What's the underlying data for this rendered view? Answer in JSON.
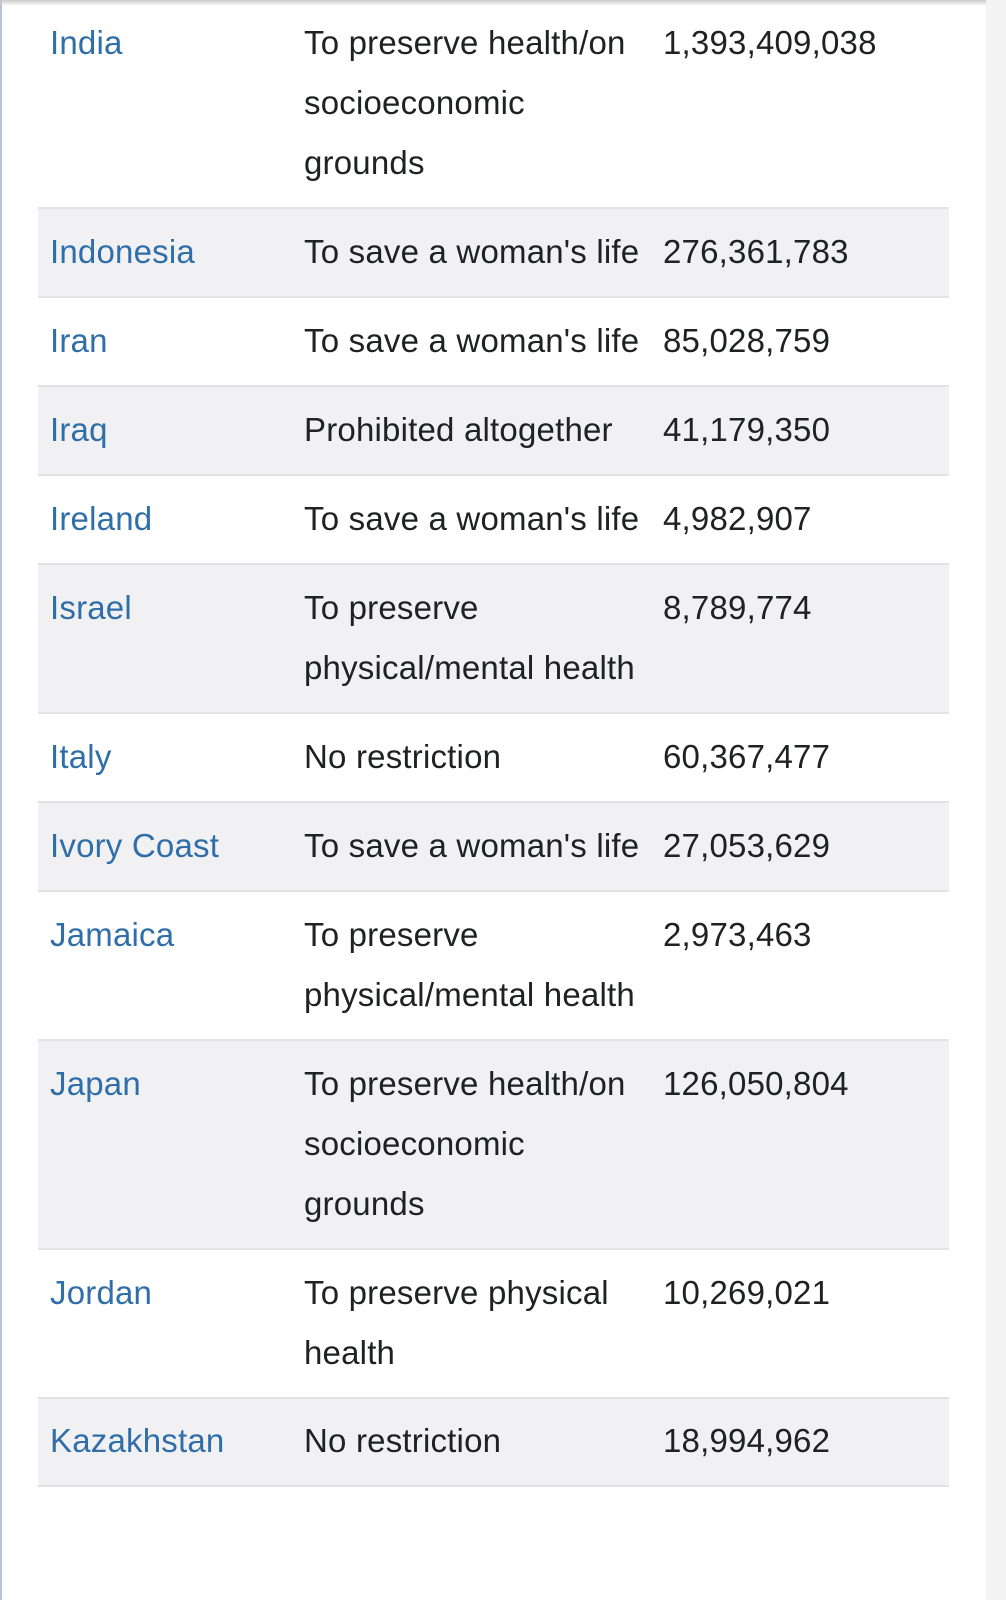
{
  "rows": [
    {
      "country": "India",
      "grounds": "To preserve health/on socioeconomic grounds",
      "population": "1,393,409,038"
    },
    {
      "country": "Indonesia",
      "grounds": "To save a woman's life",
      "population": "276,361,783"
    },
    {
      "country": "Iran",
      "grounds": "To save a woman's life",
      "population": "85,028,759"
    },
    {
      "country": "Iraq",
      "grounds": "Prohibited altogether",
      "population": "41,179,350"
    },
    {
      "country": "Ireland",
      "grounds": "To save a woman's life",
      "population": "4,982,907"
    },
    {
      "country": "Israel",
      "grounds": "To preserve physical/mental health",
      "population": "8,789,774"
    },
    {
      "country": "Italy",
      "grounds": "No restriction",
      "population": "60,367,477"
    },
    {
      "country": "Ivory Coast",
      "grounds": "To save a woman's life",
      "population": "27,053,629"
    },
    {
      "country": "Jamaica",
      "grounds": "To preserve physical/mental health",
      "population": "2,973,463"
    },
    {
      "country": "Japan",
      "grounds": "To preserve health/on socioeconomic grounds",
      "population": "126,050,804"
    },
    {
      "country": "Jordan",
      "grounds": "To preserve physical health",
      "population": "10,269,021"
    },
    {
      "country": "Kazakhstan",
      "grounds": "No restriction",
      "population": "18,994,962"
    }
  ],
  "colors": {
    "link": "#2f6ea8",
    "text": "#202122",
    "row_alt": "#f1f1f3",
    "row_border": "#e2e3e5"
  }
}
